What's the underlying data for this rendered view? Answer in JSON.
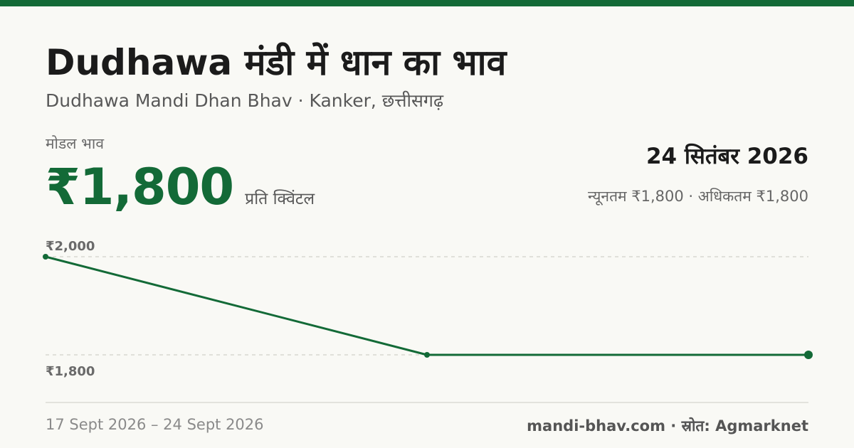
{
  "header": {
    "title": "Dudhawa मंडी में धान का भाव",
    "subtitle": "Dudhawa Mandi Dhan Bhav · Kanker, छत्तीसगढ़"
  },
  "price": {
    "label": "मोडल भाव",
    "value": "₹1,800",
    "unit": "प्रति क्विंटल",
    "date": "24 सितंबर 2026",
    "range": "न्यूनतम ₹1,800 · अधिकतम ₹1,800"
  },
  "footer": {
    "date_range": "17 Sept 2026 – 24 Sept 2026",
    "source": "mandi-bhav.com · स्रोत: Agmarknet"
  },
  "colors": {
    "accent": "#136a37",
    "grid": "#c8c8c0"
  },
  "chart_data": {
    "type": "line",
    "x": [
      "17 Sept 2026",
      "",
      "24 Sept 2026"
    ],
    "series": [
      {
        "values": [
          2000,
          1800,
          1800
        ]
      }
    ],
    "yticks": [
      2000,
      1800
    ],
    "ytick_labels": [
      "₹2,000",
      "₹1,800"
    ],
    "ylim": [
      1800,
      2000
    ],
    "grid": true,
    "legend": "none"
  }
}
